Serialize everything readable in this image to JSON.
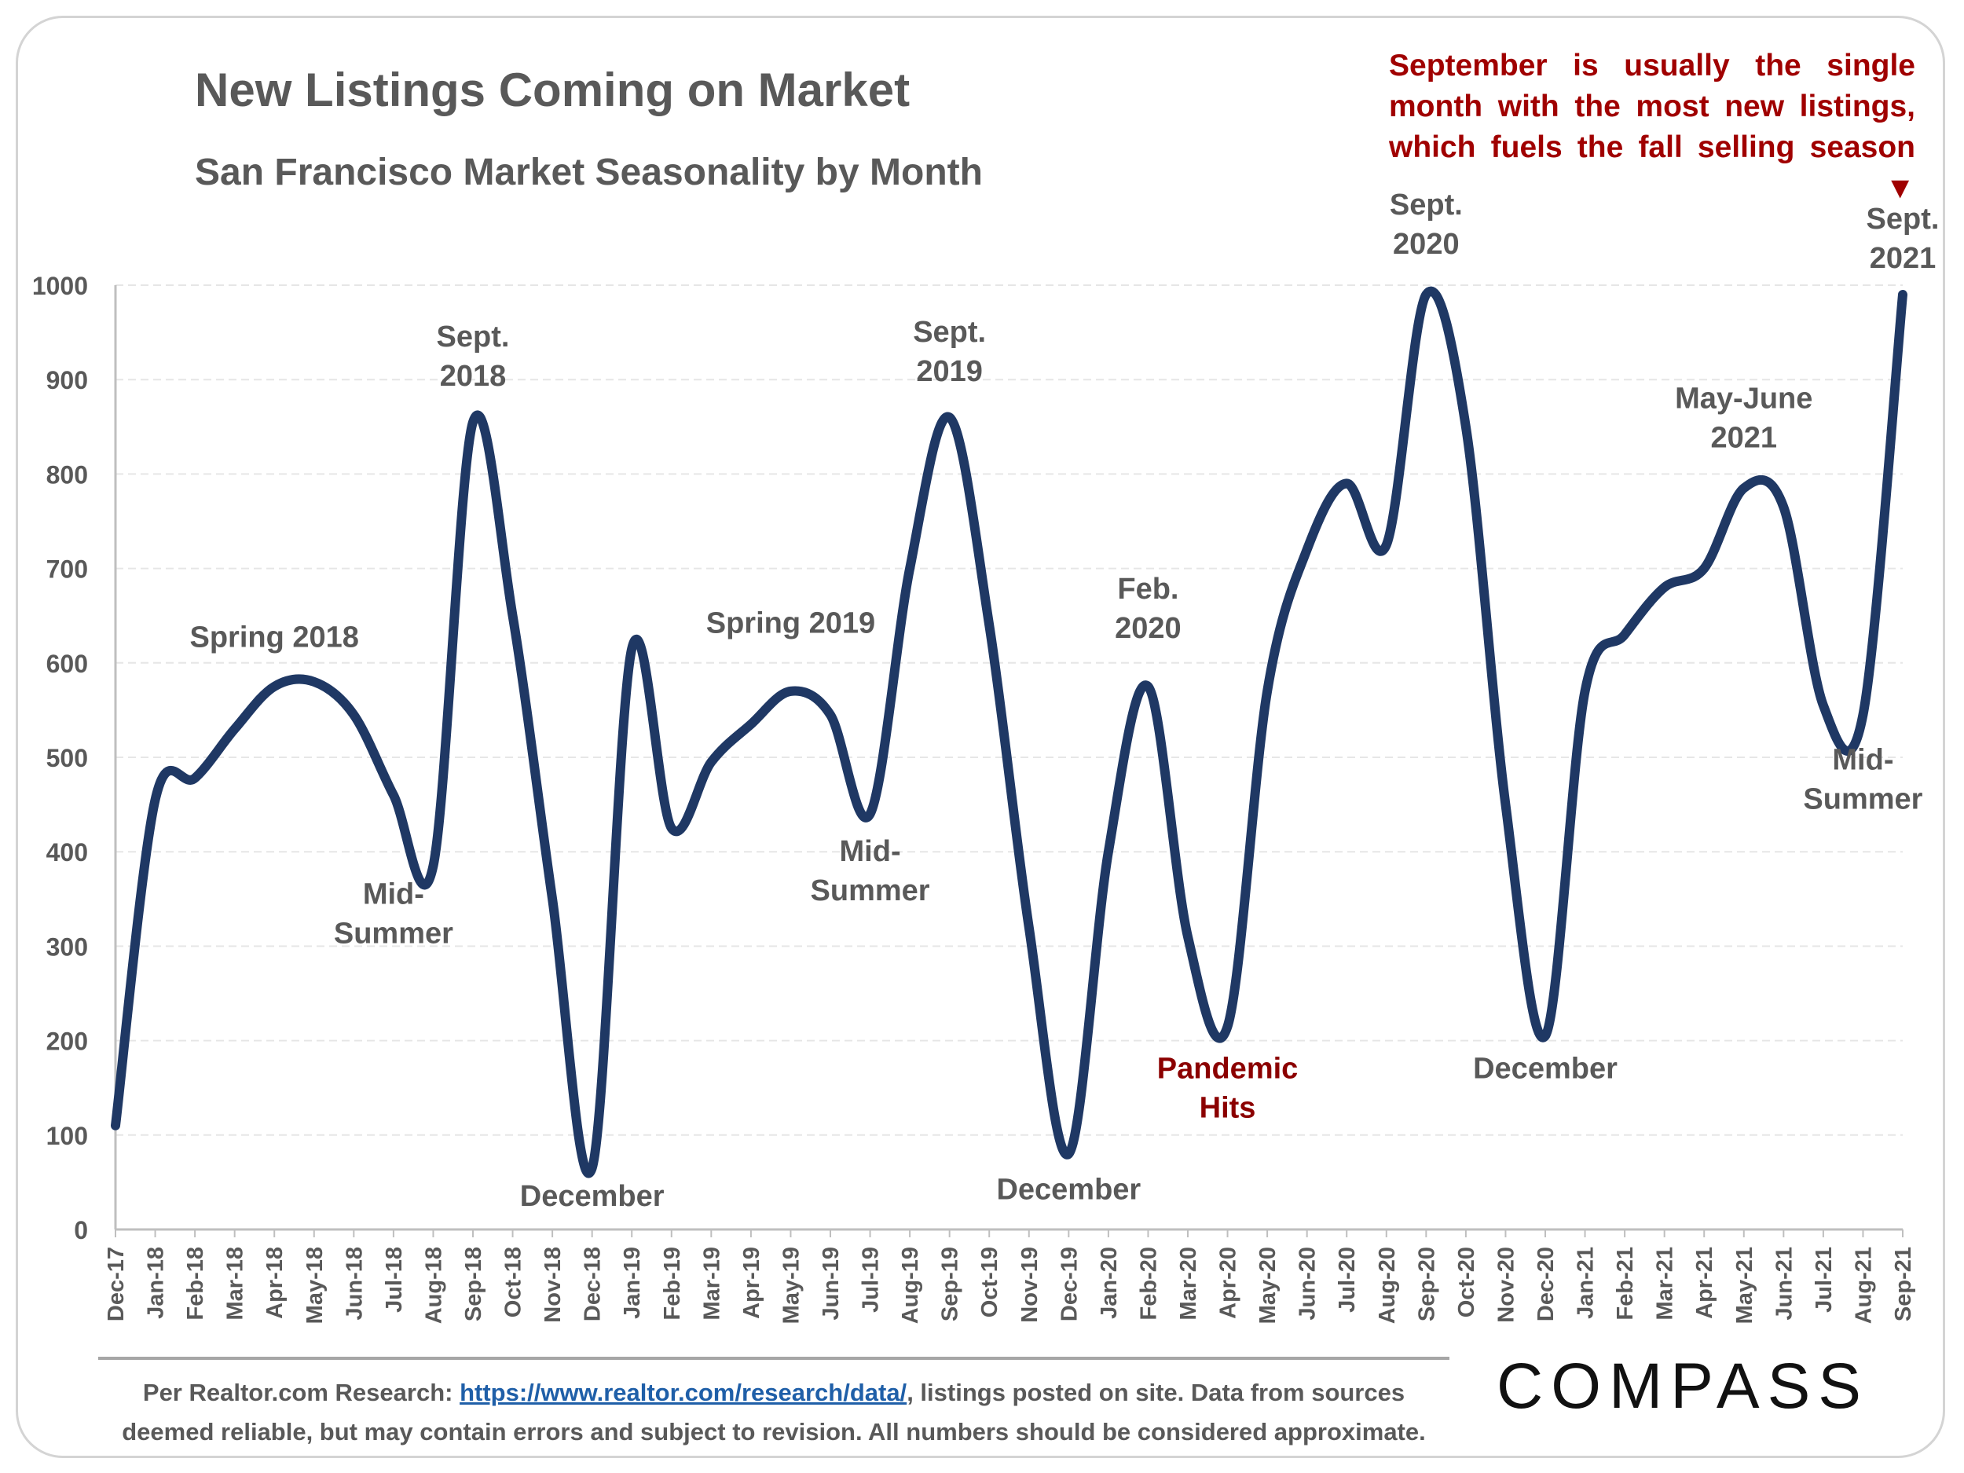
{
  "header": {
    "title": "New Listings Coming on Market",
    "subtitle": "San Francisco Market Seasonality by Month"
  },
  "callout": {
    "text": "September is usually the single month with the most new listings, which fuels the fall selling season ▼",
    "color": "#a00000"
  },
  "footer": {
    "prefix": "Per Realtor.com Research:",
    "link_text": "https://www.realtor.com/research/data/",
    "suffix": ", listings posted on site. Data from sources deemed reliable, but may contain errors and subject to revision. All numbers should be considered approximate."
  },
  "logo": {
    "text": "COMPASS"
  },
  "colors": {
    "line": "#1f3864",
    "text": "#595959",
    "annotation_dark": "#595959",
    "annotation_red": "#8b0000",
    "grid": "#e6e6e6"
  },
  "chart_data": {
    "type": "line",
    "categories": [
      "Dec-17",
      "Jan-18",
      "Feb-18",
      "Mar-18",
      "Apr-18",
      "May-18",
      "Jun-18",
      "Jul-18",
      "Aug-18",
      "Sep-18",
      "Oct-18",
      "Nov-18",
      "Dec-18",
      "Jan-19",
      "Feb-19",
      "Mar-19",
      "Apr-19",
      "May-19",
      "Jun-19",
      "Jul-19",
      "Aug-19",
      "Sep-19",
      "Oct-19",
      "Nov-19",
      "Dec-19",
      "Jan-20",
      "Feb-20",
      "Mar-20",
      "Apr-20",
      "May-20",
      "Jun-20",
      "Jul-20",
      "Aug-20",
      "Sep-20",
      "Oct-20",
      "Nov-20",
      "Dec-20",
      "Jan-21",
      "Feb-21",
      "Mar-21",
      "Apr-21",
      "May-21",
      "Jun-21",
      "Jul-21",
      "Aug-21",
      "Sep-21"
    ],
    "values": [
      110,
      455,
      478,
      530,
      575,
      580,
      545,
      460,
      385,
      855,
      650,
      350,
      65,
      615,
      425,
      495,
      535,
      570,
      545,
      440,
      700,
      860,
      640,
      320,
      80,
      400,
      575,
      310,
      215,
      570,
      720,
      790,
      725,
      990,
      850,
      450,
      205,
      570,
      630,
      680,
      700,
      785,
      765,
      555,
      545,
      990
    ],
    "ylim": [
      0,
      1000
    ],
    "yticks": [
      0,
      100,
      200,
      300,
      400,
      500,
      600,
      700,
      800,
      900,
      1000
    ],
    "grid": true,
    "legend": "none",
    "annotations": [
      {
        "lines": [
          "Spring 2018"
        ],
        "month": "Apr-18",
        "value": 617,
        "color": "dark"
      },
      {
        "lines": [
          "Mid-",
          "Summer"
        ],
        "month": "Jul-18",
        "value": 345,
        "color": "dark"
      },
      {
        "lines": [
          "Sept.",
          "2018"
        ],
        "month": "Sep-18",
        "value": 935,
        "color": "dark"
      },
      {
        "lines": [
          "December"
        ],
        "month": "Dec-18",
        "value": 25,
        "color": "dark"
      },
      {
        "lines": [
          "Spring 2019"
        ],
        "month": "May-19",
        "value": 632,
        "color": "dark"
      },
      {
        "lines": [
          "Mid-",
          "Summer"
        ],
        "month": "Jul-19",
        "value": 390,
        "color": "dark"
      },
      {
        "lines": [
          "Sept.",
          "2019"
        ],
        "month": "Sep-19",
        "value": 940,
        "color": "dark"
      },
      {
        "lines": [
          "December"
        ],
        "month": "Dec-19",
        "value": 32,
        "color": "dark"
      },
      {
        "lines": [
          "Feb.",
          "2020"
        ],
        "month": "Feb-20",
        "value": 668,
        "color": "dark"
      },
      {
        "lines": [
          "Pandemic",
          "Hits"
        ],
        "month": "Apr-20",
        "value": 160,
        "color": "red"
      },
      {
        "lines": [
          "Sept.",
          "2020"
        ],
        "month": "Sep-20",
        "value": 1075,
        "color": "dark"
      },
      {
        "lines": [
          "December"
        ],
        "month": "Dec-20",
        "value": 160,
        "color": "dark"
      },
      {
        "lines": [
          "May-June",
          "2021"
        ],
        "month": "May-21",
        "value": 870,
        "color": "dark"
      },
      {
        "lines": [
          "Mid-",
          "Summer"
        ],
        "month": "Aug-21",
        "value": 487,
        "color": "dark"
      },
      {
        "lines": [
          "Sept.",
          "2021"
        ],
        "month": "Sep-21",
        "value": 1060,
        "color": "dark"
      }
    ]
  }
}
